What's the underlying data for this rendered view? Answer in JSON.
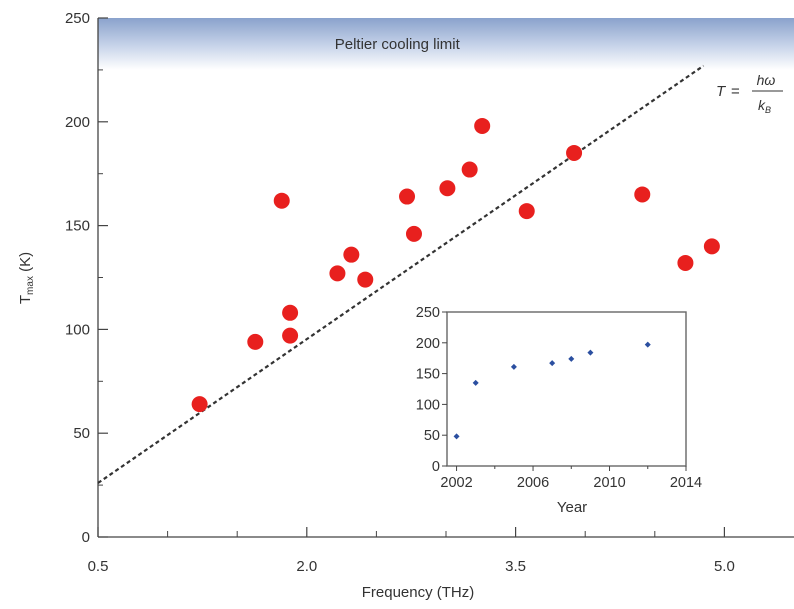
{
  "chart_data": [
    {
      "type": "scatter",
      "xlabel": "Frequency (THz)",
      "ylabel": {
        "main": "T",
        "sub": "max",
        "rest": " (K)"
      },
      "xlim": [
        0.5,
        5.5
      ],
      "ylim": [
        0,
        250
      ],
      "x_ticks": [
        0.5,
        2.0,
        3.5,
        5.0
      ],
      "x_tick_labels": [
        "0.5",
        "2.0",
        "3.5",
        "5.0"
      ],
      "y_ticks": [
        0,
        50,
        100,
        150,
        200,
        250
      ],
      "y_tick_labels": [
        "0",
        "50",
        "100",
        "150",
        "200",
        "250"
      ],
      "band_label": "Peltier cooling limit",
      "band_range": [
        225,
        250
      ],
      "equation": {
        "lhs": "T",
        "eq": "=",
        "numerator": "hω",
        "denominator_main": "k",
        "denominator_sub": "B"
      },
      "limit_line": {
        "x": [
          0.5,
          4.85
        ],
        "y": [
          26,
          227
        ],
        "style": "dashed"
      },
      "point_color": "#e8201e",
      "series": [
        {
          "points": [
            {
              "x": 1.23,
              "y": 64
            },
            {
              "x": 1.63,
              "y": 94
            },
            {
              "x": 1.82,
              "y": 162
            },
            {
              "x": 1.88,
              "y": 108
            },
            {
              "x": 1.88,
              "y": 97
            },
            {
              "x": 2.22,
              "y": 127
            },
            {
              "x": 2.32,
              "y": 136
            },
            {
              "x": 2.42,
              "y": 124
            },
            {
              "x": 2.72,
              "y": 164
            },
            {
              "x": 2.77,
              "y": 146
            },
            {
              "x": 3.01,
              "y": 168
            },
            {
              "x": 3.17,
              "y": 177
            },
            {
              "x": 3.26,
              "y": 198
            },
            {
              "x": 3.58,
              "y": 157
            },
            {
              "x": 3.92,
              "y": 185
            },
            {
              "x": 4.41,
              "y": 165
            },
            {
              "x": 4.72,
              "y": 132
            },
            {
              "x": 4.91,
              "y": 140
            }
          ]
        }
      ]
    },
    {
      "type": "scatter",
      "xlabel": "Year",
      "ylabel": "",
      "xlim": [
        2001.5,
        2014
      ],
      "ylim": [
        0,
        250
      ],
      "x_ticks": [
        2002,
        2006,
        2010,
        2014
      ],
      "x_tick_labels": [
        "2002",
        "2006",
        "2010",
        "2014"
      ],
      "y_ticks": [
        0,
        50,
        100,
        150,
        200,
        250
      ],
      "y_tick_labels": [
        "0",
        "50",
        "100",
        "150",
        "200",
        "250"
      ],
      "point_color": "#2b4fa0",
      "series": [
        {
          "points": [
            {
              "x": 2002,
              "y": 48
            },
            {
              "x": 2003,
              "y": 135
            },
            {
              "x": 2005,
              "y": 161
            },
            {
              "x": 2007,
              "y": 167
            },
            {
              "x": 2008,
              "y": 174
            },
            {
              "x": 2009,
              "y": 184
            },
            {
              "x": 2012,
              "y": 197
            }
          ]
        }
      ]
    }
  ]
}
